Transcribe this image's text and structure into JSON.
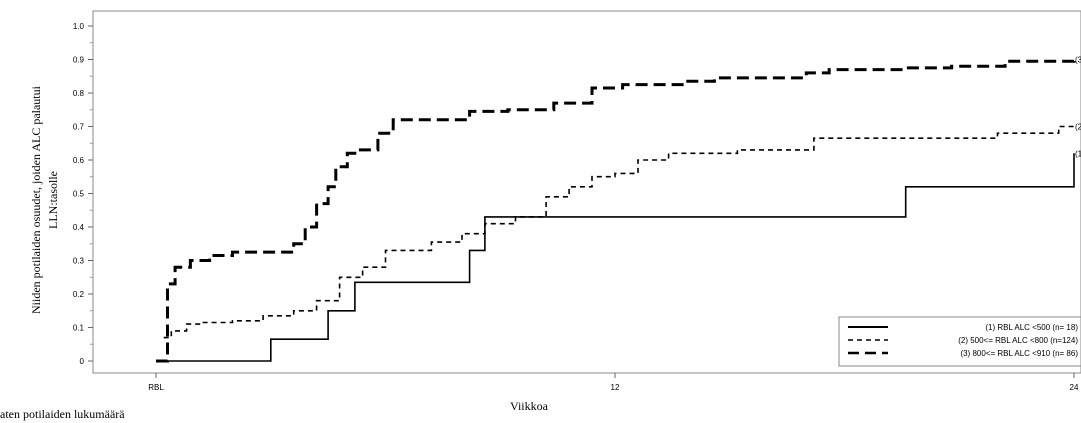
{
  "chart_data": {
    "type": "line",
    "line_shape": "step",
    "ylabel_lines": [
      "Niiden potilaiden osuudet, joiden ALC palautui",
      "LLN:tasolle"
    ],
    "xlabel": "Viikkoa",
    "bottom_left_text": "aten potilaiden lukumäärä",
    "ylim": [
      0,
      1.0
    ],
    "xlim": [
      0,
      24
    ],
    "yticks": [
      0,
      0.1,
      0.2,
      0.3,
      0.4,
      0.5,
      0.6,
      0.7,
      0.8,
      0.9,
      1.0
    ],
    "ytick_labels": [
      "0",
      "0.1",
      "0.2",
      "0.3",
      "0.4",
      "0.5",
      "0.6",
      "0.7",
      "0.8",
      "0.9",
      "1.0"
    ],
    "xticks": [
      0,
      12,
      24
    ],
    "xtick_labels": [
      "RBL",
      "12",
      "24"
    ],
    "legend_position": "bottom-right",
    "series": [
      {
        "name": "(1) RBL ALC <500 (n= 18)",
        "end_label": "(1",
        "style": "solid",
        "x": [
          0,
          0.3,
          3.0,
          4.5,
          5.2,
          8.2,
          8.6,
          16.6,
          19.6,
          24
        ],
        "y": [
          0,
          0,
          0.065,
          0.15,
          0.235,
          0.33,
          0.43,
          0.43,
          0.52,
          0.62
        ]
      },
      {
        "name": "(2) 500<= RBL ALC <800 (n=124)",
        "end_label": "(2",
        "style": "dashed",
        "x": [
          0.2,
          0.4,
          0.8,
          1.2,
          2.0,
          2.8,
          3.6,
          4.2,
          4.8,
          5.4,
          6.0,
          7.2,
          8.0,
          8.6,
          9.4,
          10.2,
          10.8,
          11.4,
          12.0,
          12.6,
          13.4,
          15.2,
          17.2,
          20.2,
          22.0,
          23.6,
          24
        ],
        "y": [
          0.07,
          0.09,
          0.11,
          0.115,
          0.12,
          0.135,
          0.15,
          0.18,
          0.25,
          0.28,
          0.33,
          0.355,
          0.38,
          0.41,
          0.43,
          0.49,
          0.52,
          0.55,
          0.56,
          0.6,
          0.62,
          0.63,
          0.665,
          0.665,
          0.68,
          0.7,
          0.7
        ]
      },
      {
        "name": "(3) 800<= RBL ALC <910 (n= 86)",
        "end_label": "(3",
        "style": "longdash",
        "x": [
          0,
          0.3,
          0.5,
          0.9,
          1.4,
          2.0,
          3.6,
          3.9,
          4.2,
          4.5,
          4.7,
          5.0,
          5.3,
          5.8,
          6.2,
          7.8,
          8.2,
          9.2,
          10.4,
          10.8,
          11.4,
          12.2,
          13.8,
          14.6,
          15.8,
          17.0,
          17.6,
          19.6,
          20.8,
          22.2,
          24
        ],
        "y": [
          0,
          0.23,
          0.28,
          0.3,
          0.315,
          0.325,
          0.35,
          0.4,
          0.47,
          0.52,
          0.58,
          0.62,
          0.63,
          0.68,
          0.72,
          0.72,
          0.745,
          0.75,
          0.77,
          0.77,
          0.815,
          0.825,
          0.835,
          0.845,
          0.845,
          0.86,
          0.87,
          0.875,
          0.88,
          0.895,
          0.9
        ]
      }
    ]
  }
}
